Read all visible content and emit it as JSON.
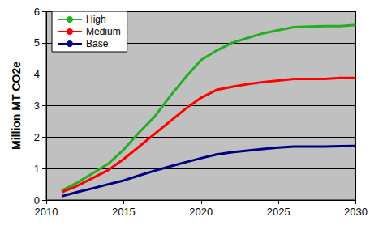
{
  "chart_data": {
    "type": "line",
    "y_label": "Million MT CO2e",
    "x": [
      2011,
      2012,
      2013,
      2014,
      2015,
      2016,
      2017,
      2018,
      2019,
      2020,
      2021,
      2022,
      2023,
      2024,
      2025,
      2026,
      2027,
      2028,
      2029,
      2030
    ],
    "series": [
      {
        "name": "High",
        "color": "#22b022",
        "values": [
          0.3,
          0.55,
          0.85,
          1.15,
          1.6,
          2.15,
          2.65,
          3.3,
          3.9,
          4.45,
          4.75,
          5.0,
          5.15,
          5.3,
          5.4,
          5.5,
          5.52,
          5.53,
          5.53,
          5.57
        ]
      },
      {
        "name": "Medium",
        "color": "#ff0000",
        "values": [
          0.25,
          0.45,
          0.7,
          0.95,
          1.3,
          1.7,
          2.1,
          2.5,
          2.9,
          3.25,
          3.5,
          3.6,
          3.68,
          3.75,
          3.8,
          3.85,
          3.85,
          3.85,
          3.88,
          3.88
        ]
      },
      {
        "name": "Base",
        "color": "#000080",
        "values": [
          0.12,
          0.25,
          0.37,
          0.5,
          0.62,
          0.78,
          0.93,
          1.07,
          1.2,
          1.33,
          1.45,
          1.52,
          1.57,
          1.62,
          1.67,
          1.7,
          1.7,
          1.7,
          1.71,
          1.72
        ]
      }
    ],
    "xlim": [
      2010,
      2030
    ],
    "xticks": [
      2010,
      2015,
      2020,
      2025,
      2030
    ],
    "ylim": [
      0,
      6
    ],
    "yticks": [
      0,
      1,
      2,
      3,
      4,
      5,
      6
    ],
    "grid": true,
    "legend": "upper left"
  }
}
